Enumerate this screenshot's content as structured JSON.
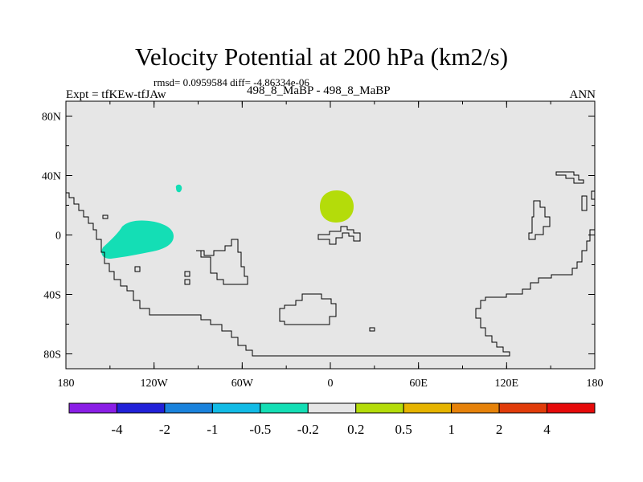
{
  "title": "Velocity Potential at 200 hPa (km2/s)",
  "stats_line": "rmsd= 0.0959584 diff= -4.86334e-06",
  "left_label": "Expt = tfKEw-tfJAw",
  "center_label": "498_8_MaBP - 498_8_MaBP",
  "right_label": "ANN",
  "lon_ticks": [
    {
      "lon": -180,
      "label": "180"
    },
    {
      "lon": -120,
      "label": "120W"
    },
    {
      "lon": -60,
      "label": "60W"
    },
    {
      "lon": 0,
      "label": "0"
    },
    {
      "lon": 60,
      "label": "60E"
    },
    {
      "lon": 120,
      "label": "120E"
    },
    {
      "lon": 180,
      "label": "180"
    }
  ],
  "lat_ticks": [
    {
      "lat": 80,
      "label": "80N"
    },
    {
      "lat": 40,
      "label": "40N"
    },
    {
      "lat": 0,
      "label": "0"
    },
    {
      "lat": -40,
      "label": "40S"
    },
    {
      "lat": -80,
      "label": "80S"
    }
  ],
  "colorbar": {
    "colors": [
      "#8a1ee6",
      "#2121d8",
      "#1a82dc",
      "#12bbe6",
      "#14deb5",
      "#e6e6e6",
      "#b4dc0a",
      "#e6b400",
      "#e6820a",
      "#e13c0a",
      "#e60a0a"
    ],
    "labels": [
      "-4",
      "-2",
      "-1",
      "-0.5",
      "-0.2",
      "0.2",
      "0.5",
      "1",
      "2",
      "4"
    ]
  },
  "background_color": "#e6e6e6",
  "anomalies": [
    {
      "name": "Negative anomaly over eastern Pacific",
      "range": "-0.5 to -0.2",
      "color": "#14deb5",
      "lon_range": [
        -155,
        -107
      ],
      "lat_range": [
        -16,
        12
      ]
    },
    {
      "name": "Small negative anomaly off Baja California",
      "range": "-0.5 to -0.2",
      "color": "#14deb5",
      "lon_range": [
        -106,
        -103
      ],
      "lat_range": [
        32,
        36
      ]
    },
    {
      "name": "Positive anomaly over North Africa",
      "range": "0.2 to 0.5",
      "color": "#b4dc0a",
      "lon_range": [
        -8,
        15
      ],
      "lat_range": [
        10,
        31
      ]
    }
  ]
}
